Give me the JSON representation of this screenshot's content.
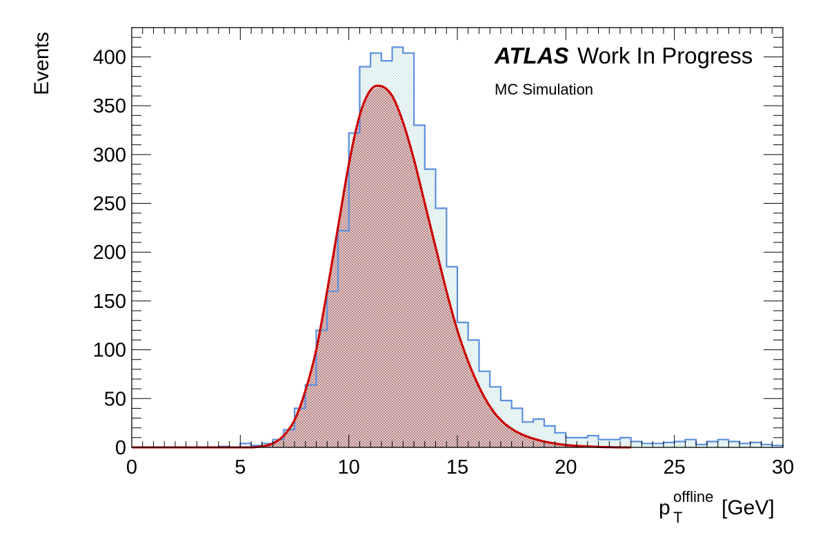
{
  "chart_data": {
    "type": "histogram",
    "ylabel": "Events",
    "xlabel": {
      "base": "p",
      "sub": "T",
      "sup": "offline",
      "unit": "[GeV]"
    },
    "xlim": [
      0,
      30
    ],
    "ylim": [
      0,
      430
    ],
    "xticks": [
      0,
      5,
      10,
      15,
      20,
      25,
      30
    ],
    "yticks": [
      0,
      50,
      100,
      150,
      200,
      250,
      300,
      350,
      400
    ],
    "bin_width": 0.5,
    "colors": {
      "histogram_line": "#5b8fe0",
      "histogram_fill_hatch": "#9fcfcf",
      "fit_line": "#cc0000",
      "fit_fill_hatch": "#8b1a1a"
    },
    "annotations": {
      "atlas": "ATLAS",
      "status": "Work In Progress",
      "sub": "MC Simulation"
    },
    "series": [
      {
        "type": "histogram",
        "bin_starts": [
          0,
          0.5,
          1,
          1.5,
          2,
          2.5,
          3,
          3.5,
          4,
          4.5,
          5,
          5.5,
          6,
          6.5,
          7,
          7.5,
          8,
          8.5,
          9,
          9.5,
          10,
          10.5,
          11,
          11.5,
          12,
          12.5,
          13,
          13.5,
          14,
          14.5,
          15,
          15.5,
          16,
          16.5,
          17,
          17.5,
          18,
          18.5,
          19,
          19.5,
          20,
          20.5,
          21,
          21.5,
          22,
          22.5,
          23,
          23.5,
          24,
          24.5,
          25,
          25.5,
          26,
          26.5,
          27,
          27.5,
          28,
          28.5,
          29,
          29.5
        ],
        "values": [
          0,
          0,
          0,
          0,
          0,
          0,
          0,
          0,
          1,
          0,
          4,
          2,
          4,
          8,
          18,
          40,
          64,
          120,
          160,
          222,
          322,
          390,
          404,
          396,
          410,
          404,
          330,
          285,
          245,
          185,
          128,
          110,
          78,
          62,
          48,
          40,
          26,
          29,
          22,
          15,
          10,
          10,
          12,
          8,
          8,
          10,
          6,
          4,
          4,
          5,
          6,
          8,
          3,
          6,
          8,
          6,
          4,
          5,
          3,
          2
        ]
      },
      {
        "type": "fit",
        "x": [
          5.5,
          6,
          6.5,
          7,
          7.5,
          8,
          8.5,
          9,
          9.5,
          10,
          10.5,
          11,
          11.5,
          12,
          12.5,
          13,
          13.5,
          14,
          14.5,
          15,
          15.5,
          16,
          16.5,
          17,
          17.5,
          18,
          18.5,
          19,
          19.5,
          20,
          20.5,
          21,
          21.5,
          22,
          22.5
        ],
        "y": [
          0,
          1,
          4,
          12,
          28,
          58,
          100,
          160,
          225,
          290,
          340,
          366,
          370,
          360,
          333,
          295,
          250,
          205,
          160,
          120,
          88,
          62,
          42,
          28,
          19,
          13,
          9,
          6,
          4,
          2.5,
          1.5,
          1,
          0.5,
          0.2,
          0
        ]
      }
    ]
  }
}
